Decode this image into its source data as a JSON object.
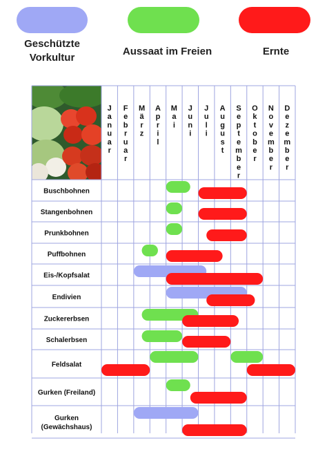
{
  "legend": [
    {
      "key": "vorkultur",
      "label": "Geschützte\nVorkultur",
      "color": "#9fa8f5"
    },
    {
      "key": "aussaat",
      "label": "Aussaat im Freien",
      "color": "#6fe04f"
    },
    {
      "key": "ernte",
      "label": "Ernte",
      "color": "#ff1a1a"
    }
  ],
  "chart_data": {
    "type": "gantt",
    "categories": [
      "Januar",
      "Februar",
      "März",
      "April",
      "Mai",
      "Juni",
      "Juli",
      "August",
      "September",
      "Oktober",
      "November",
      "Dezember"
    ],
    "series": [
      {
        "name": "Geschützte Vorkultur",
        "color": "#9fa8f5"
      },
      {
        "name": "Aussaat im Freien",
        "color": "#6fe04f"
      },
      {
        "name": "Ernte",
        "color": "#ff1a1a"
      }
    ],
    "rows": [
      {
        "label": "Buschbohnen",
        "bars": [
          {
            "series": "Aussaat im Freien",
            "start": 5.0,
            "end": 6.5
          },
          {
            "series": "Ernte",
            "start": 7.0,
            "end": 10.0
          }
        ]
      },
      {
        "label": "Stangenbohnen",
        "bars": [
          {
            "series": "Aussaat im Freien",
            "start": 5.0,
            "end": 6.0
          },
          {
            "series": "Ernte",
            "start": 7.0,
            "end": 10.0
          }
        ]
      },
      {
        "label": "Prunkbohnen",
        "bars": [
          {
            "series": "Aussaat im Freien",
            "start": 5.0,
            "end": 6.0
          },
          {
            "series": "Ernte",
            "start": 7.5,
            "end": 10.0
          }
        ]
      },
      {
        "label": "Puffbohnen",
        "bars": [
          {
            "series": "Aussaat im Freien",
            "start": 3.5,
            "end": 4.5
          },
          {
            "series": "Ernte",
            "start": 5.0,
            "end": 8.5
          }
        ]
      },
      {
        "label": "Eis-/Kopfsalat",
        "bars": [
          {
            "series": "Geschützte Vorkultur",
            "start": 3.0,
            "end": 7.5
          },
          {
            "series": "Ernte",
            "start": 5.0,
            "end": 11.0
          }
        ]
      },
      {
        "label": "Endivien",
        "bars": [
          {
            "series": "Geschützte Vorkultur",
            "start": 5.0,
            "end": 10.0
          },
          {
            "series": "Ernte",
            "start": 7.5,
            "end": 10.5
          }
        ]
      },
      {
        "label": "Zuckererbsen",
        "bars": [
          {
            "series": "Aussaat im Freien",
            "start": 3.5,
            "end": 7.0
          },
          {
            "series": "Ernte",
            "start": 6.0,
            "end": 9.5
          }
        ]
      },
      {
        "label": "Schalerbsen",
        "bars": [
          {
            "series": "Aussaat im Freien",
            "start": 3.5,
            "end": 6.0
          },
          {
            "series": "Ernte",
            "start": 6.0,
            "end": 9.0
          }
        ]
      },
      {
        "label": "Feldsalat",
        "bars": [
          {
            "series": "Aussaat im Freien",
            "start": 4.0,
            "end": 7.0
          },
          {
            "series": "Aussaat im Freien",
            "start": 9.0,
            "end": 11.0
          },
          {
            "series": "Ernte",
            "start": 1.0,
            "end": 4.0
          },
          {
            "series": "Ernte",
            "start": 10.0,
            "end": 13.0
          }
        ]
      },
      {
        "label": "Gurken (Freiland)",
        "bars": [
          {
            "series": "Aussaat im Freien",
            "start": 5.0,
            "end": 6.5
          },
          {
            "series": "Ernte",
            "start": 6.5,
            "end": 10.0
          }
        ]
      },
      {
        "label": "Gurken\n(Gewächshaus)",
        "bars": [
          {
            "series": "Geschützte Vorkultur",
            "start": 3.0,
            "end": 7.0
          },
          {
            "series": "Ernte",
            "start": 6.0,
            "end": 10.0
          }
        ]
      }
    ],
    "xlim": [
      1,
      13
    ],
    "grid": true,
    "legend_position": "top"
  }
}
